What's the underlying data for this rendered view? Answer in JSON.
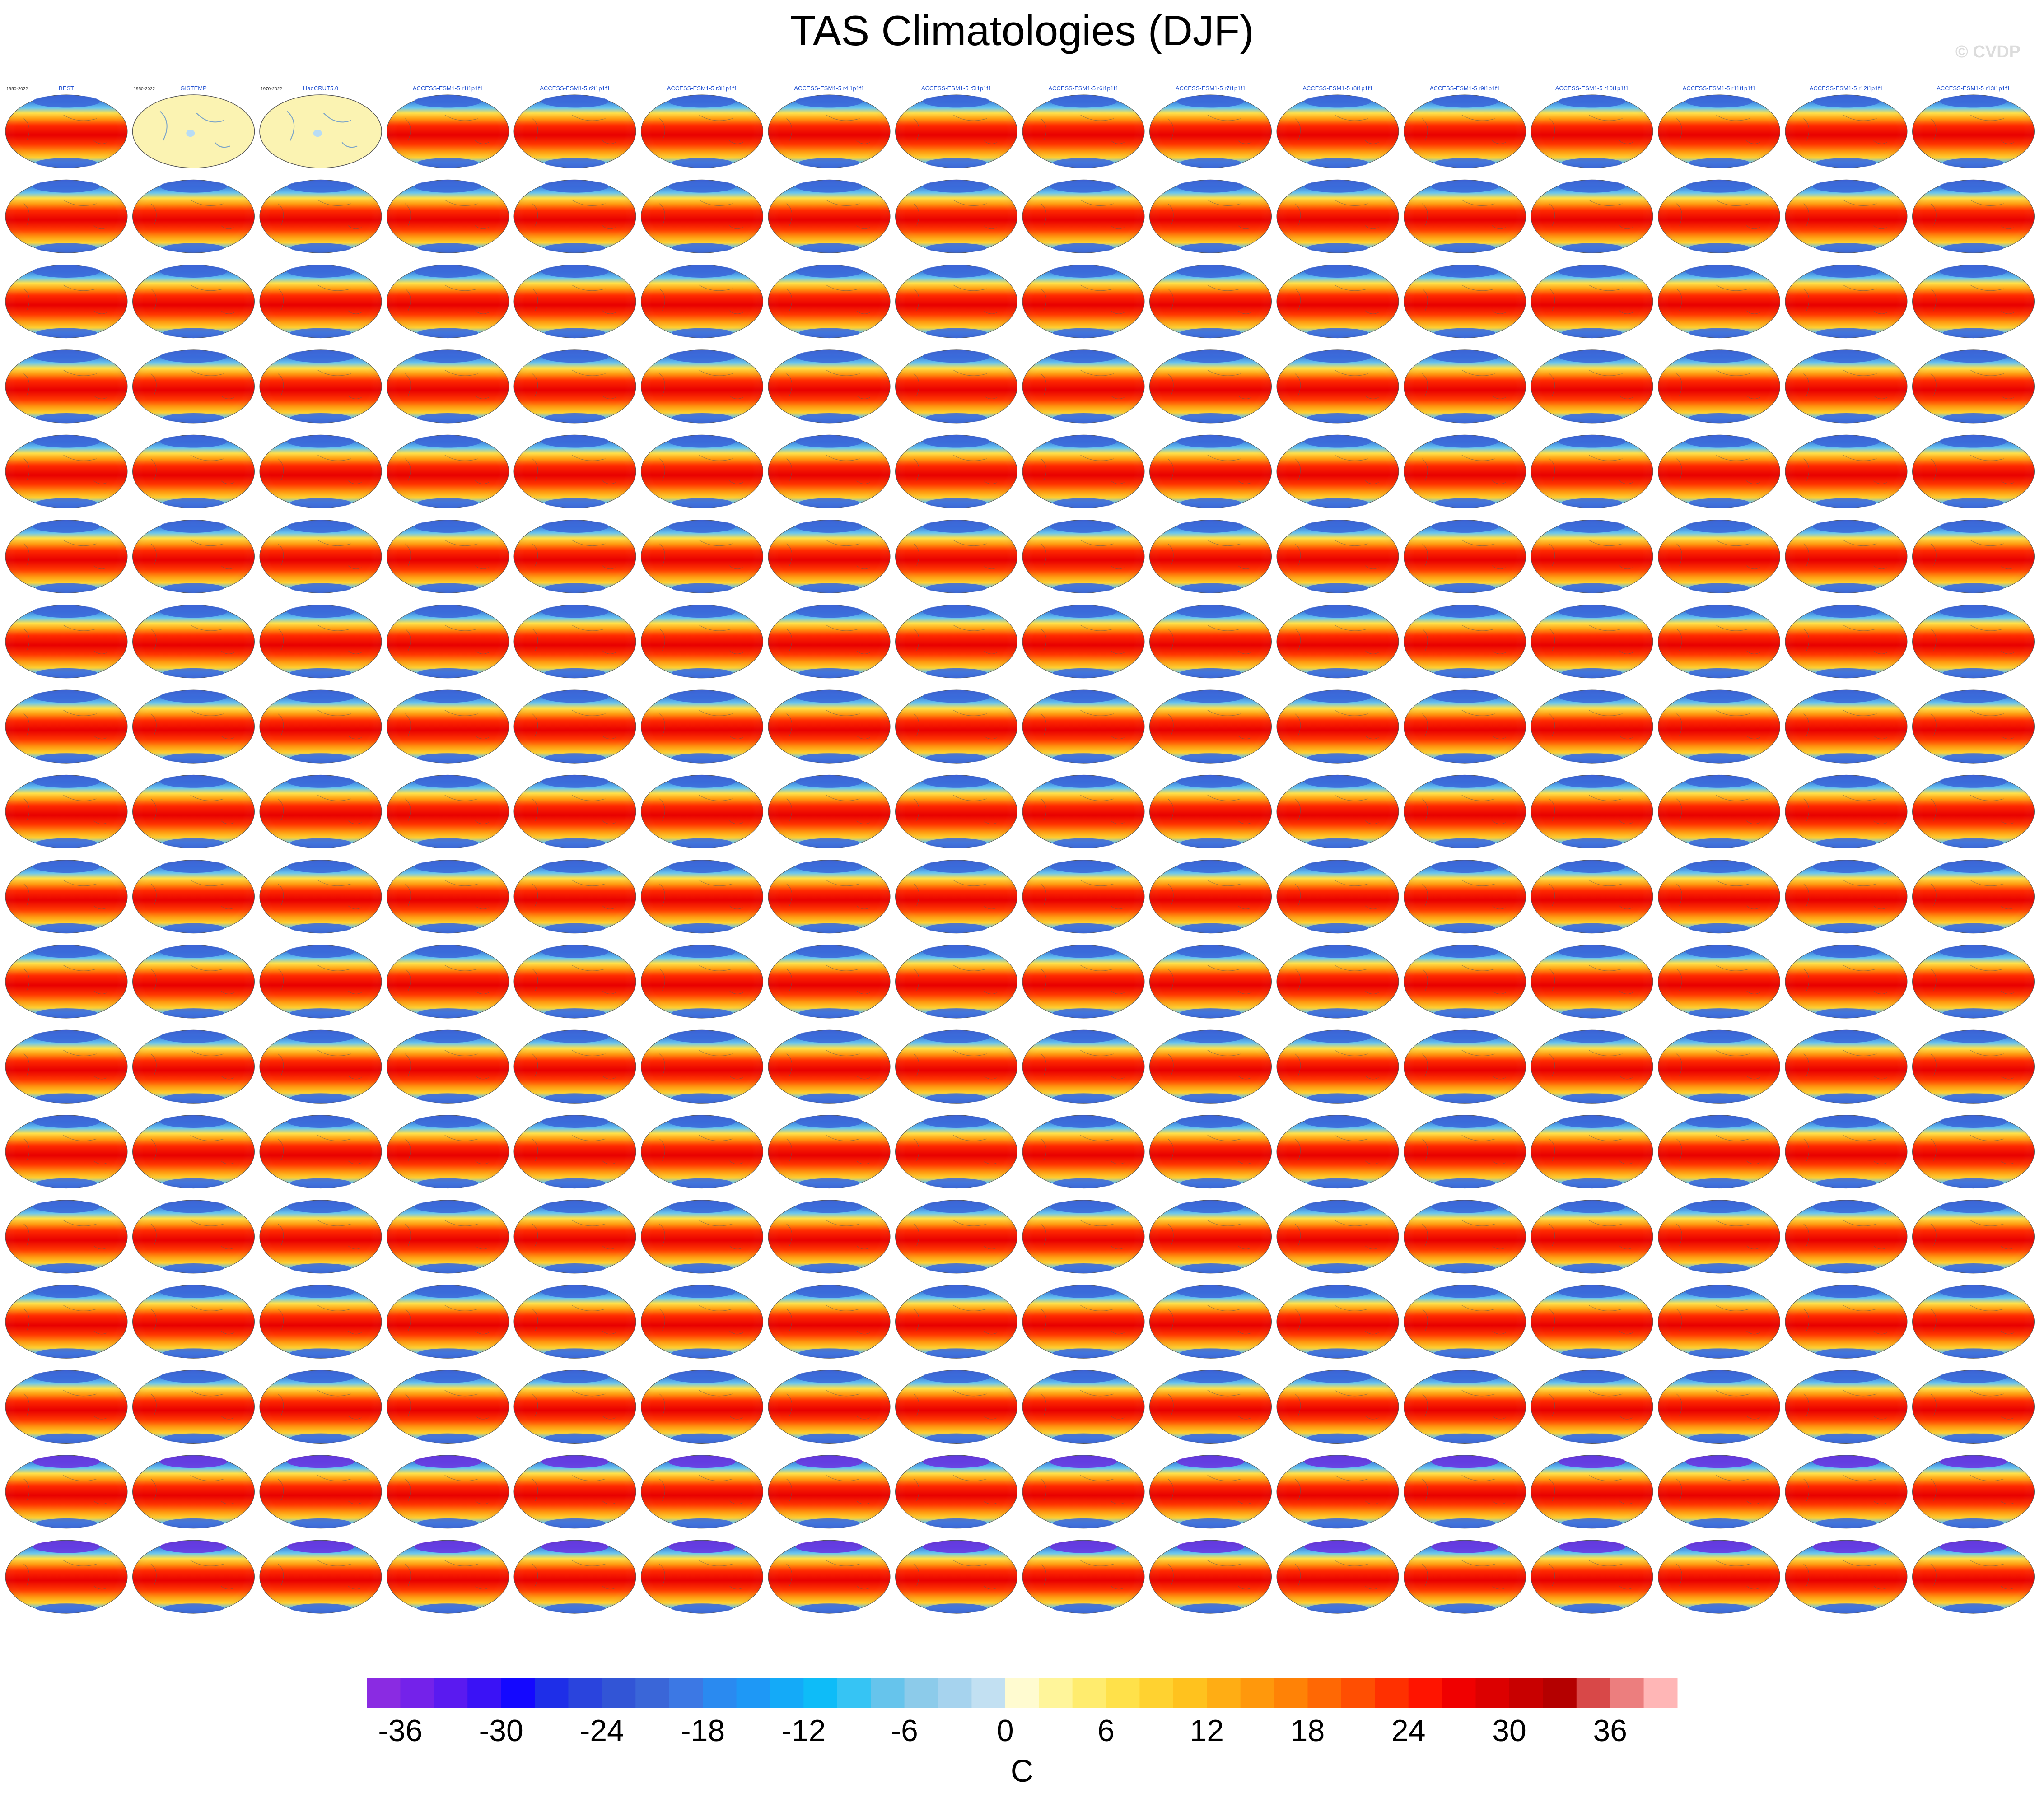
{
  "page": {
    "title": "TAS Climatologies (DJF)",
    "copyright": "© CVDP"
  },
  "chart_data": {
    "type": "heatmap",
    "title": "TAS Climatologies (DJF)",
    "grid": {
      "rows": 18,
      "cols": 16
    },
    "panels": [
      {
        "title": "BEST",
        "period": "1950-2022",
        "style": "map"
      },
      {
        "title": "GISTEMP",
        "period": "1950-2022",
        "style": "blank"
      },
      {
        "title": "HadCRUT5.0",
        "period": "1970-2022",
        "style": "blank"
      },
      {
        "title": "ACCESS-ESM1-5 r1i1p1f1",
        "style": "map"
      },
      {
        "title": "ACCESS-ESM1-5 r2i1p1f1",
        "style": "map"
      },
      {
        "title": "ACCESS-ESM1-5 r3i1p1f1",
        "style": "map"
      },
      {
        "title": "ACCESS-ESM1-5 r4i1p1f1",
        "style": "map"
      },
      {
        "title": "ACCESS-ESM1-5 r5i1p1f1",
        "style": "map"
      },
      {
        "title": "ACCESS-ESM1-5 r6i1p1f1",
        "style": "map"
      },
      {
        "title": "ACCESS-ESM1-5 r7i1p1f1",
        "style": "map"
      },
      {
        "title": "ACCESS-ESM1-5 r8i1p1f1",
        "style": "map"
      },
      {
        "title": "ACCESS-ESM1-5 r9i1p1f1",
        "style": "map"
      },
      {
        "title": "ACCESS-ESM1-5 r10i1p1f1",
        "style": "map"
      },
      {
        "title": "ACCESS-ESM1-5 r11i1p1f1",
        "style": "map"
      },
      {
        "title": "ACCESS-ESM1-5 r12i1p1f1",
        "style": "map"
      },
      {
        "title": "ACCESS-ESM1-5 r13i1p1f1",
        "style": "map"
      }
    ],
    "colorbar": {
      "label": "C",
      "ticks": [
        "-36",
        "-30",
        "-24",
        "-18",
        "-12",
        "-6",
        "0",
        "6",
        "12",
        "18",
        "24",
        "30",
        "36"
      ],
      "colors": [
        "#8a2be2",
        "#7422ea",
        "#5a1af0",
        "#3a12f6",
        "#1408ff",
        "#1e2ee8",
        "#2a44dd",
        "#3255d6",
        "#3a66d8",
        "#3c78e4",
        "#2a8af0",
        "#1e98f6",
        "#14aaf8",
        "#0ebcf8",
        "#36c4f4",
        "#66c4ec",
        "#8ccbea",
        "#a6d3ee",
        "#c2e0f2",
        "#fffbd0",
        "#fff59a",
        "#ffec6e",
        "#ffe14a",
        "#ffd230",
        "#ffc21e",
        "#ffad14",
        "#ff980c",
        "#ff8206",
        "#ff6804",
        "#ff4e02",
        "#ff3000",
        "#ff1400",
        "#f00000",
        "#dc0000",
        "#c80000",
        "#b40000",
        "#d84848",
        "#ec7e7e",
        "#ffb6b6"
      ]
    },
    "colors": {
      "ocean_blank": "#b8dcf5",
      "land_blank": "#fbf3b2",
      "panel_title": "#2050d0"
    }
  }
}
